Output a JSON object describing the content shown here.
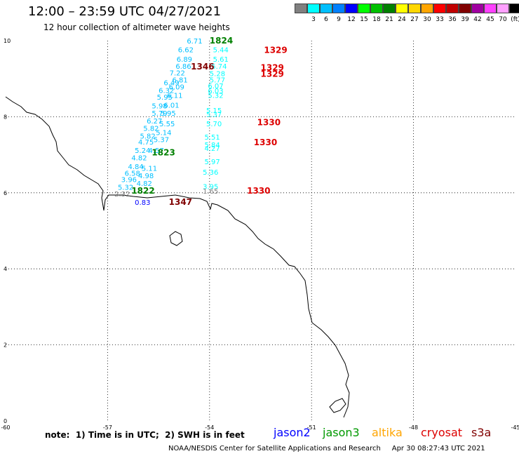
{
  "header": {
    "title": "12:00 – 23:59 UTC 04/27/2021",
    "subtitle": "12 hour collection of altimeter wave heights"
  },
  "legend": {
    "unit": "(ft)",
    "swatches": [
      {
        "color": "#808080",
        "label": ""
      },
      {
        "color": "#00ffff",
        "label": "3"
      },
      {
        "color": "#00bfff",
        "label": "6"
      },
      {
        "color": "#0080ff",
        "label": "9"
      },
      {
        "color": "#0000ff",
        "label": "12"
      },
      {
        "color": "#00ff00",
        "label": "15"
      },
      {
        "color": "#00c000",
        "label": "18"
      },
      {
        "color": "#008000",
        "label": "21"
      },
      {
        "color": "#ffff00",
        "label": "24"
      },
      {
        "color": "#ffd700",
        "label": "27"
      },
      {
        "color": "#ffa500",
        "label": "30"
      },
      {
        "color": "#ff0000",
        "label": "33"
      },
      {
        "color": "#c00000",
        "label": "36"
      },
      {
        "color": "#800000",
        "label": "39"
      },
      {
        "color": "#a000a0",
        "label": "42"
      },
      {
        "color": "#ff40ff",
        "label": "45"
      },
      {
        "color": "#ffa0ff",
        "label": "70"
      },
      {
        "color": "#000000",
        "label": "(ft)"
      }
    ]
  },
  "map": {
    "lon_range": [
      -60,
      -45
    ],
    "lat_range": [
      0,
      10
    ],
    "x_ticks": [
      "-60",
      "-57",
      "-54",
      "-51",
      "-48",
      "-45"
    ],
    "y_ticks": [
      "0",
      "2",
      "4",
      "6",
      "8",
      "10"
    ],
    "grid": true,
    "observations": [
      {
        "v": "6.71",
        "lon": -54.67,
        "lat": 9.93,
        "c": "#00bfff"
      },
      {
        "v": "6.62",
        "lon": -54.93,
        "lat": 9.7,
        "c": "#00bfff"
      },
      {
        "v": "6.89",
        "lon": -54.97,
        "lat": 9.45,
        "c": "#00bfff"
      },
      {
        "v": "6.86",
        "lon": -55.0,
        "lat": 9.26,
        "c": "#00bfff"
      },
      {
        "v": "7.22",
        "lon": -55.18,
        "lat": 9.09,
        "c": "#00bfff"
      },
      {
        "v": "6.81",
        "lon": -55.1,
        "lat": 8.9,
        "c": "#00bfff"
      },
      {
        "v": "6.49",
        "lon": -55.35,
        "lat": 8.83,
        "c": "#00bfff"
      },
      {
        "v": "6.09",
        "lon": -55.2,
        "lat": 8.72,
        "c": "#00bfff"
      },
      {
        "v": "6.32",
        "lon": -55.5,
        "lat": 8.63,
        "c": "#00bfff"
      },
      {
        "v": "6.11",
        "lon": -55.25,
        "lat": 8.5,
        "c": "#00bfff"
      },
      {
        "v": "5.95",
        "lon": -55.55,
        "lat": 8.45,
        "c": "#00bfff"
      },
      {
        "v": "6.01",
        "lon": -55.35,
        "lat": 8.24,
        "c": "#00bfff"
      },
      {
        "v": "5.98",
        "lon": -55.7,
        "lat": 8.22,
        "c": "#00bfff"
      },
      {
        "v": "5.95",
        "lon": -55.45,
        "lat": 8.03,
        "c": "#00bfff"
      },
      {
        "v": "5.79",
        "lon": -55.7,
        "lat": 8.03,
        "c": "#00bfff"
      },
      {
        "v": "6.27",
        "lon": -55.85,
        "lat": 7.82,
        "c": "#00bfff"
      },
      {
        "v": "5.55",
        "lon": -55.48,
        "lat": 7.75,
        "c": "#00bfff"
      },
      {
        "v": "5.82",
        "lon": -55.95,
        "lat": 7.63,
        "c": "#00bfff"
      },
      {
        "v": "5.14",
        "lon": -55.58,
        "lat": 7.52,
        "c": "#00bfff"
      },
      {
        "v": "5.82",
        "lon": -56.05,
        "lat": 7.43,
        "c": "#00bfff"
      },
      {
        "v": "5.37",
        "lon": -55.65,
        "lat": 7.33,
        "c": "#00bfff"
      },
      {
        "v": "4.75",
        "lon": -56.1,
        "lat": 7.27,
        "c": "#00bfff"
      },
      {
        "v": "5.24",
        "lon": -56.2,
        "lat": 7.05,
        "c": "#00bfff"
      },
      {
        "v": "4.57",
        "lon": -55.8,
        "lat": 7.05,
        "c": "#00bfff"
      },
      {
        "v": "4.82",
        "lon": -56.3,
        "lat": 6.85,
        "c": "#00bfff"
      },
      {
        "v": "4.84",
        "lon": -56.4,
        "lat": 6.62,
        "c": "#00bfff"
      },
      {
        "v": "5.11",
        "lon": -56.0,
        "lat": 6.58,
        "c": "#00bfff"
      },
      {
        "v": "6.58",
        "lon": -56.5,
        "lat": 6.45,
        "c": "#00bfff"
      },
      {
        "v": "4.98",
        "lon": -56.1,
        "lat": 6.38,
        "c": "#00bfff"
      },
      {
        "v": "3.96",
        "lon": -56.6,
        "lat": 6.28,
        "c": "#00bfff"
      },
      {
        "v": "4.82",
        "lon": -56.15,
        "lat": 6.18,
        "c": "#00bfff"
      },
      {
        "v": "5.32",
        "lon": -56.7,
        "lat": 6.08,
        "c": "#00bfff"
      },
      {
        "v": "2.32",
        "lon": -56.8,
        "lat": 5.9,
        "c": "#808080"
      },
      {
        "v": "0.83",
        "lon": -56.2,
        "lat": 5.68,
        "c": "#0000ff"
      },
      {
        "v": "5.44",
        "lon": -53.9,
        "lat": 9.7,
        "c": "#00ffff"
      },
      {
        "v": "5.61",
        "lon": -53.9,
        "lat": 9.45,
        "c": "#00ffff"
      },
      {
        "v": "5.74",
        "lon": -53.95,
        "lat": 9.26,
        "c": "#00ffff"
      },
      {
        "v": "5.28",
        "lon": -54.0,
        "lat": 9.07,
        "c": "#00ffff"
      },
      {
        "v": "5.77",
        "lon": -54.0,
        "lat": 8.9,
        "c": "#00ffff"
      },
      {
        "v": "6.07",
        "lon": -54.05,
        "lat": 8.75,
        "c": "#00ffff"
      },
      {
        "v": "6.03",
        "lon": -54.05,
        "lat": 8.62,
        "c": "#00ffff"
      },
      {
        "v": "5.32",
        "lon": -54.05,
        "lat": 8.5,
        "c": "#00ffff"
      },
      {
        "v": "5.15",
        "lon": -54.1,
        "lat": 8.1,
        "c": "#00ffff"
      },
      {
        "v": "5.37",
        "lon": -54.1,
        "lat": 8.0,
        "c": "#00ffff"
      },
      {
        "v": "5.70",
        "lon": -54.1,
        "lat": 7.75,
        "c": "#00ffff"
      },
      {
        "v": "5.51",
        "lon": -54.15,
        "lat": 7.4,
        "c": "#00ffff"
      },
      {
        "v": "5.84",
        "lon": -54.15,
        "lat": 7.2,
        "c": "#00ffff"
      },
      {
        "v": "4.27",
        "lon": -54.15,
        "lat": 7.1,
        "c": "#00ffff"
      },
      {
        "v": "5.97",
        "lon": -54.15,
        "lat": 6.75,
        "c": "#00ffff"
      },
      {
        "v": "5.36",
        "lon": -54.2,
        "lat": 6.48,
        "c": "#00ffff"
      },
      {
        "v": "3.95",
        "lon": -54.2,
        "lat": 6.1,
        "c": "#00ffff"
      },
      {
        "v": "1.65",
        "lon": -54.2,
        "lat": 5.98,
        "c": "#808080"
      }
    ],
    "pass_labels": [
      {
        "t": "1824",
        "lon": -54.0,
        "lat": 9.93,
        "c": "#008000"
      },
      {
        "t": "1329",
        "lon": -52.4,
        "lat": 9.68,
        "c": "#dd0000"
      },
      {
        "t": "1346",
        "lon": -54.55,
        "lat": 9.24,
        "c": "#800000"
      },
      {
        "t": "1329",
        "lon": -52.5,
        "lat": 9.22,
        "c": "#dd0000"
      },
      {
        "t": "1329",
        "lon": -52.5,
        "lat": 9.05,
        "c": "#dd0000"
      },
      {
        "t": "1330",
        "lon": -52.6,
        "lat": 7.78,
        "c": "#dd0000"
      },
      {
        "t": "1330",
        "lon": -52.7,
        "lat": 7.25,
        "c": "#dd0000"
      },
      {
        "t": "1823",
        "lon": -55.7,
        "lat": 6.98,
        "c": "#008000"
      },
      {
        "t": "1822",
        "lon": -56.3,
        "lat": 5.98,
        "c": "#008000"
      },
      {
        "t": "1330",
        "lon": -52.9,
        "lat": 5.98,
        "c": "#dd0000"
      },
      {
        "t": "1347",
        "lon": -55.2,
        "lat": 5.68,
        "c": "#800000"
      }
    ]
  },
  "note": "note:  1) Time is in UTC;  2) SWH is in feet",
  "satellites": [
    {
      "name": "jason2",
      "color": "#0000ff"
    },
    {
      "name": "jason3",
      "color": "#009900"
    },
    {
      "name": "altika",
      "color": "#ffa500"
    },
    {
      "name": "cryosat",
      "color": "#dd0000"
    },
    {
      "name": "s3a",
      "color": "#800000"
    }
  ],
  "footer": "NOAA/NESDIS Center for Satellite Applications and Research     Apr 30 08:27:43 UTC 2021"
}
